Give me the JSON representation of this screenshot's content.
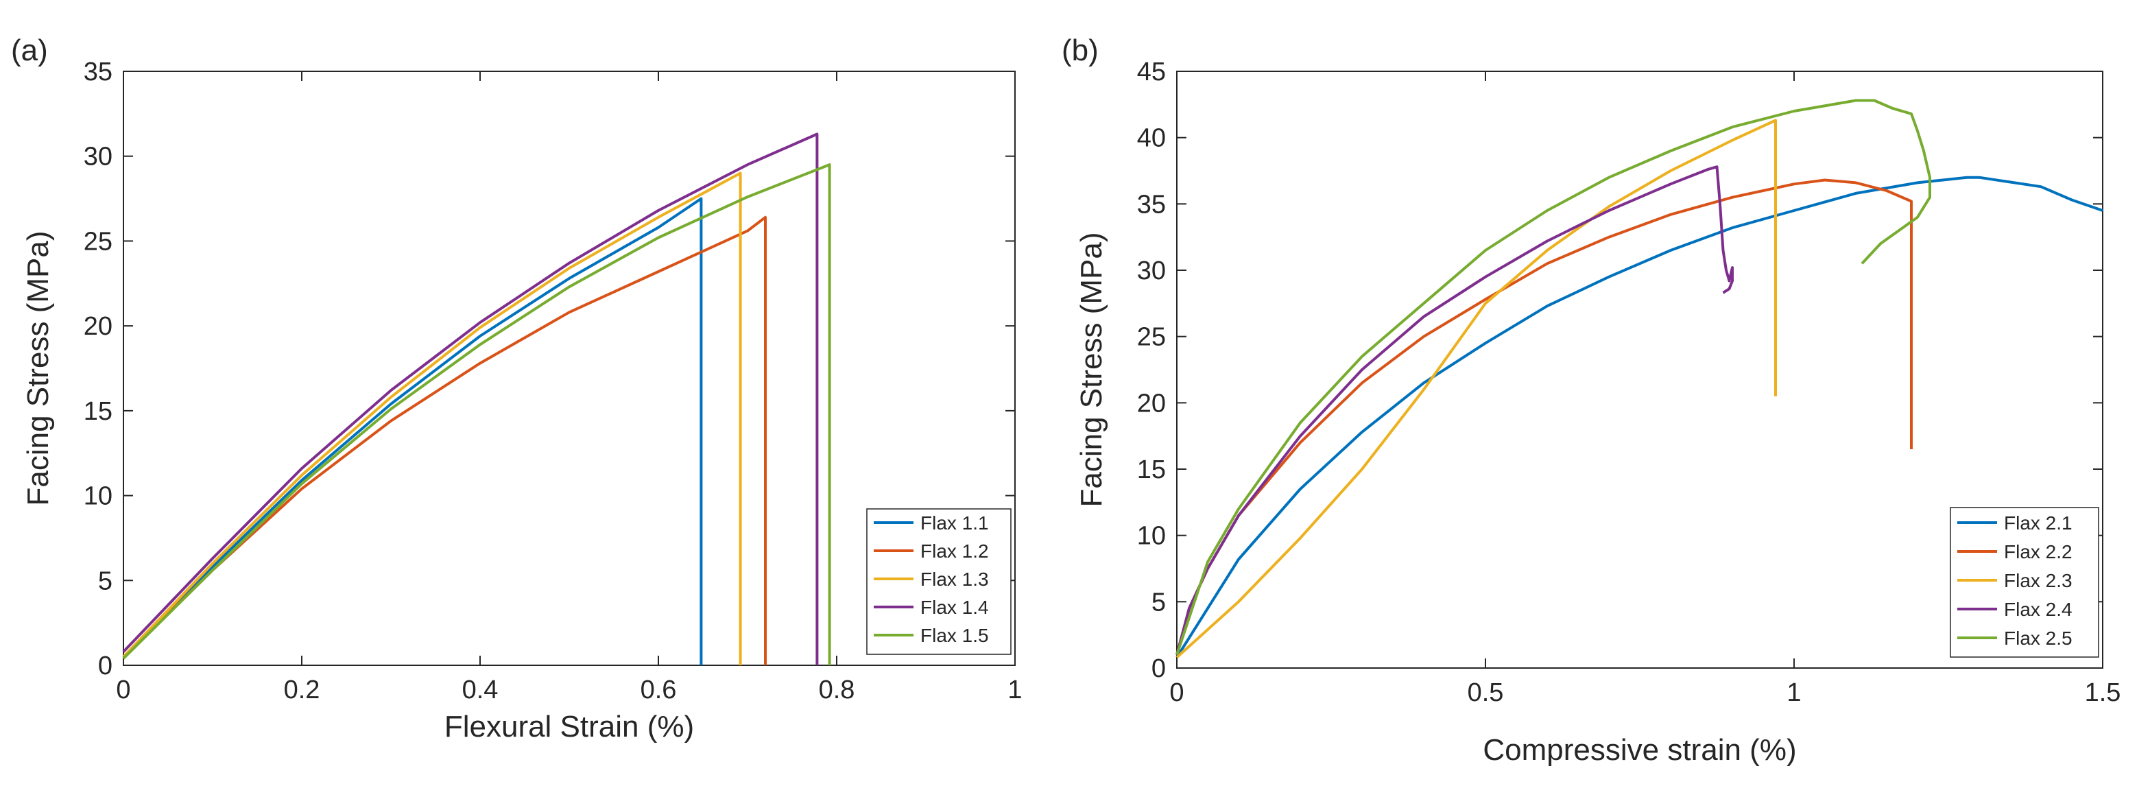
{
  "chart_data": [
    {
      "type": "line",
      "panel_label": "(a)",
      "title": "",
      "xlabel": "Flexural Strain (%)",
      "ylabel": "Facing Stress (MPa)",
      "xlim": [
        0,
        1
      ],
      "ylim": [
        0,
        35
      ],
      "xticks": [
        0,
        0.2,
        0.4,
        0.6,
        0.8,
        1
      ],
      "xtick_labels": [
        "0",
        "0.2",
        "0.4",
        "0.6",
        "0.8",
        "1"
      ],
      "yticks": [
        0,
        5,
        10,
        15,
        20,
        25,
        30,
        35
      ],
      "ytick_labels": [
        "0",
        "5",
        "10",
        "15",
        "20",
        "25",
        "30",
        "35"
      ],
      "grid": false,
      "legend_position": "bottom-right",
      "series": [
        {
          "name": "Flax 1.1",
          "color": "#0072BD",
          "x": [
            0,
            0.1,
            0.2,
            0.3,
            0.4,
            0.5,
            0.6,
            0.648,
            0.648
          ],
          "y": [
            0.5,
            5.8,
            10.9,
            15.4,
            19.4,
            22.8,
            25.8,
            27.5,
            0
          ]
        },
        {
          "name": "Flax 1.2",
          "color": "#D95319",
          "x": [
            0,
            0.1,
            0.2,
            0.3,
            0.4,
            0.5,
            0.6,
            0.7,
            0.72,
            0.72
          ],
          "y": [
            0.5,
            5.6,
            10.4,
            14.4,
            17.8,
            20.8,
            23.2,
            25.6,
            26.4,
            0
          ]
        },
        {
          "name": "Flax 1.3",
          "color": "#EDB120",
          "x": [
            0,
            0.1,
            0.2,
            0.3,
            0.4,
            0.5,
            0.6,
            0.692,
            0.692
          ],
          "y": [
            0.5,
            6.0,
            11.2,
            15.8,
            19.9,
            23.4,
            26.4,
            29.0,
            0
          ]
        },
        {
          "name": "Flax 1.4",
          "color": "#7E2F8E",
          "x": [
            0,
            0.1,
            0.2,
            0.3,
            0.4,
            0.5,
            0.6,
            0.7,
            0.778,
            0.778
          ],
          "y": [
            0.8,
            6.3,
            11.6,
            16.2,
            20.2,
            23.7,
            26.8,
            29.5,
            31.3,
            0
          ]
        },
        {
          "name": "Flax 1.5",
          "color": "#77AC30",
          "x": [
            0,
            0.1,
            0.2,
            0.3,
            0.4,
            0.5,
            0.6,
            0.7,
            0.792,
            0.792
          ],
          "y": [
            0.4,
            5.6,
            10.7,
            15.1,
            18.9,
            22.3,
            25.2,
            27.6,
            29.5,
            0
          ]
        }
      ]
    },
    {
      "type": "line",
      "panel_label": "(b)",
      "title": "",
      "xlabel": "Compressive strain (%)",
      "ylabel": "Facing Stress (MPa)",
      "xlim": [
        0,
        1.5
      ],
      "ylim": [
        0,
        45
      ],
      "xticks": [
        0,
        0.5,
        1,
        1.5
      ],
      "xtick_labels": [
        "0",
        "0.5",
        "1",
        "1.5"
      ],
      "yticks": [
        0,
        5,
        10,
        15,
        20,
        25,
        30,
        35,
        40,
        45
      ],
      "ytick_labels": [
        "0",
        "5",
        "10",
        "15",
        "20",
        "25",
        "30",
        "35",
        "40",
        "45"
      ],
      "grid": false,
      "legend_position": "bottom-right",
      "series": [
        {
          "name": "Flax 2.1",
          "color": "#0072BD",
          "x": [
            0,
            0.05,
            0.1,
            0.2,
            0.3,
            0.4,
            0.5,
            0.6,
            0.7,
            0.8,
            0.9,
            1.0,
            1.1,
            1.2,
            1.28,
            1.3,
            1.4,
            1.45,
            1.5
          ],
          "y": [
            0.8,
            4.5,
            8.2,
            13.5,
            17.8,
            21.5,
            24.5,
            27.3,
            29.5,
            31.5,
            33.2,
            34.5,
            35.8,
            36.6,
            37.0,
            37.0,
            36.3,
            35.3,
            34.5
          ]
        },
        {
          "name": "Flax 2.2",
          "color": "#D95319",
          "x": [
            0,
            0.02,
            0.05,
            0.1,
            0.2,
            0.3,
            0.4,
            0.5,
            0.6,
            0.7,
            0.8,
            0.9,
            1.0,
            1.05,
            1.1,
            1.15,
            1.19,
            1.19
          ],
          "y": [
            1.0,
            4.5,
            7.5,
            11.5,
            17.0,
            21.5,
            25.0,
            27.8,
            30.5,
            32.5,
            34.2,
            35.5,
            36.5,
            36.8,
            36.6,
            36.0,
            35.2,
            16.5
          ]
        },
        {
          "name": "Flax 2.3",
          "color": "#EDB120",
          "x": [
            0,
            0.1,
            0.2,
            0.3,
            0.4,
            0.5,
            0.6,
            0.7,
            0.8,
            0.9,
            0.97,
            0.97
          ],
          "y": [
            0.8,
            5.0,
            9.8,
            15.0,
            21.0,
            27.5,
            31.5,
            34.8,
            37.5,
            39.8,
            41.3,
            20.5
          ]
        },
        {
          "name": "Flax 2.4",
          "color": "#7E2F8E",
          "x": [
            0,
            0.02,
            0.05,
            0.1,
            0.2,
            0.3,
            0.4,
            0.5,
            0.6,
            0.7,
            0.8,
            0.86,
            0.875,
            0.88,
            0.885,
            0.89,
            0.895,
            0.9,
            0.9,
            0.9,
            0.895,
            0.885
          ],
          "y": [
            1.0,
            4.5,
            7.5,
            11.5,
            17.5,
            22.5,
            26.5,
            29.5,
            32.2,
            34.5,
            36.5,
            37.6,
            37.8,
            35.0,
            31.5,
            30.0,
            29.2,
            30.2,
            29.8,
            29.2,
            28.6,
            28.3
          ]
        },
        {
          "name": "Flax 2.5",
          "color": "#77AC30",
          "x": [
            0,
            0.05,
            0.1,
            0.2,
            0.3,
            0.4,
            0.5,
            0.6,
            0.7,
            0.8,
            0.9,
            1.0,
            1.1,
            1.13,
            1.16,
            1.19,
            1.2,
            1.21,
            1.22,
            1.22,
            1.2,
            1.17,
            1.14,
            1.11
          ],
          "y": [
            1.0,
            8.0,
            12.0,
            18.5,
            23.5,
            27.5,
            31.5,
            34.5,
            37.0,
            39.0,
            40.8,
            42.0,
            42.8,
            42.8,
            42.2,
            41.8,
            40.5,
            39.0,
            37.0,
            35.5,
            34.0,
            33.0,
            32.0,
            30.5
          ]
        }
      ]
    }
  ]
}
